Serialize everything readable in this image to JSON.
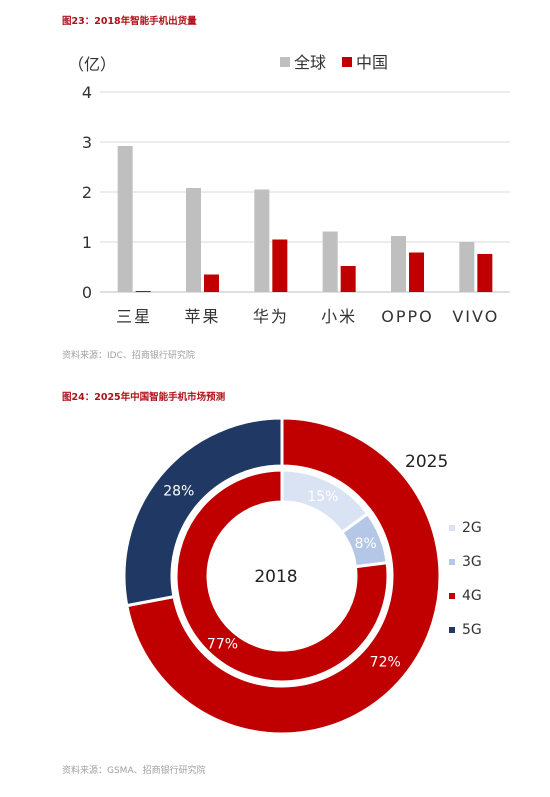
{
  "fig1": {
    "title": "图23：2018年智能手机出货量",
    "source": "资料来源：IDC、招商银行研究院"
  },
  "fig2": {
    "title": "图24：2025年中国智能手机市场预测",
    "source": "资料来源：GSMA、招商银行研究院"
  },
  "colors": {
    "gray": "#bfbfbf",
    "red": "#c00000",
    "navy": "#1f3864",
    "light": "#dae3f3",
    "lightblue": "#b4c7e7",
    "title_red": "#b0101a"
  },
  "chart_data": [
    {
      "type": "bar",
      "ylabel": "（亿）",
      "ylim": [
        0,
        4
      ],
      "yticks": [
        "0",
        "1",
        "2",
        "3",
        "4"
      ],
      "grid": true,
      "legend_position": "top-right",
      "categories": [
        "三星",
        "苹果",
        "华为",
        "小米",
        "OPPO",
        "VIVO"
      ],
      "series": [
        {
          "name": "全球",
          "color": "#bfbfbf",
          "values": [
            2.92,
            2.08,
            2.05,
            1.21,
            1.12,
            1.0
          ]
        },
        {
          "name": "中国",
          "color": "#c00000",
          "values": [
            0.02,
            0.35,
            1.05,
            0.52,
            0.79,
            0.76
          ]
        }
      ]
    },
    {
      "type": "pie",
      "variant": "nested-donut",
      "legend": [
        "2G",
        "3G",
        "4G",
        "5G"
      ],
      "legend_colors": [
        "#dae3f3",
        "#b4c7e7",
        "#c00000",
        "#1f3864"
      ],
      "rings": [
        {
          "label": "2025",
          "position": "outer",
          "categories": [
            "4G",
            "5G"
          ],
          "values": [
            72,
            28
          ],
          "labels": [
            "72%",
            "28%"
          ]
        },
        {
          "label": "2018",
          "position": "inner",
          "categories": [
            "2G",
            "3G",
            "4G"
          ],
          "values": [
            15,
            8,
            77
          ],
          "labels": [
            "15%",
            "8%",
            "77%"
          ]
        }
      ]
    }
  ]
}
